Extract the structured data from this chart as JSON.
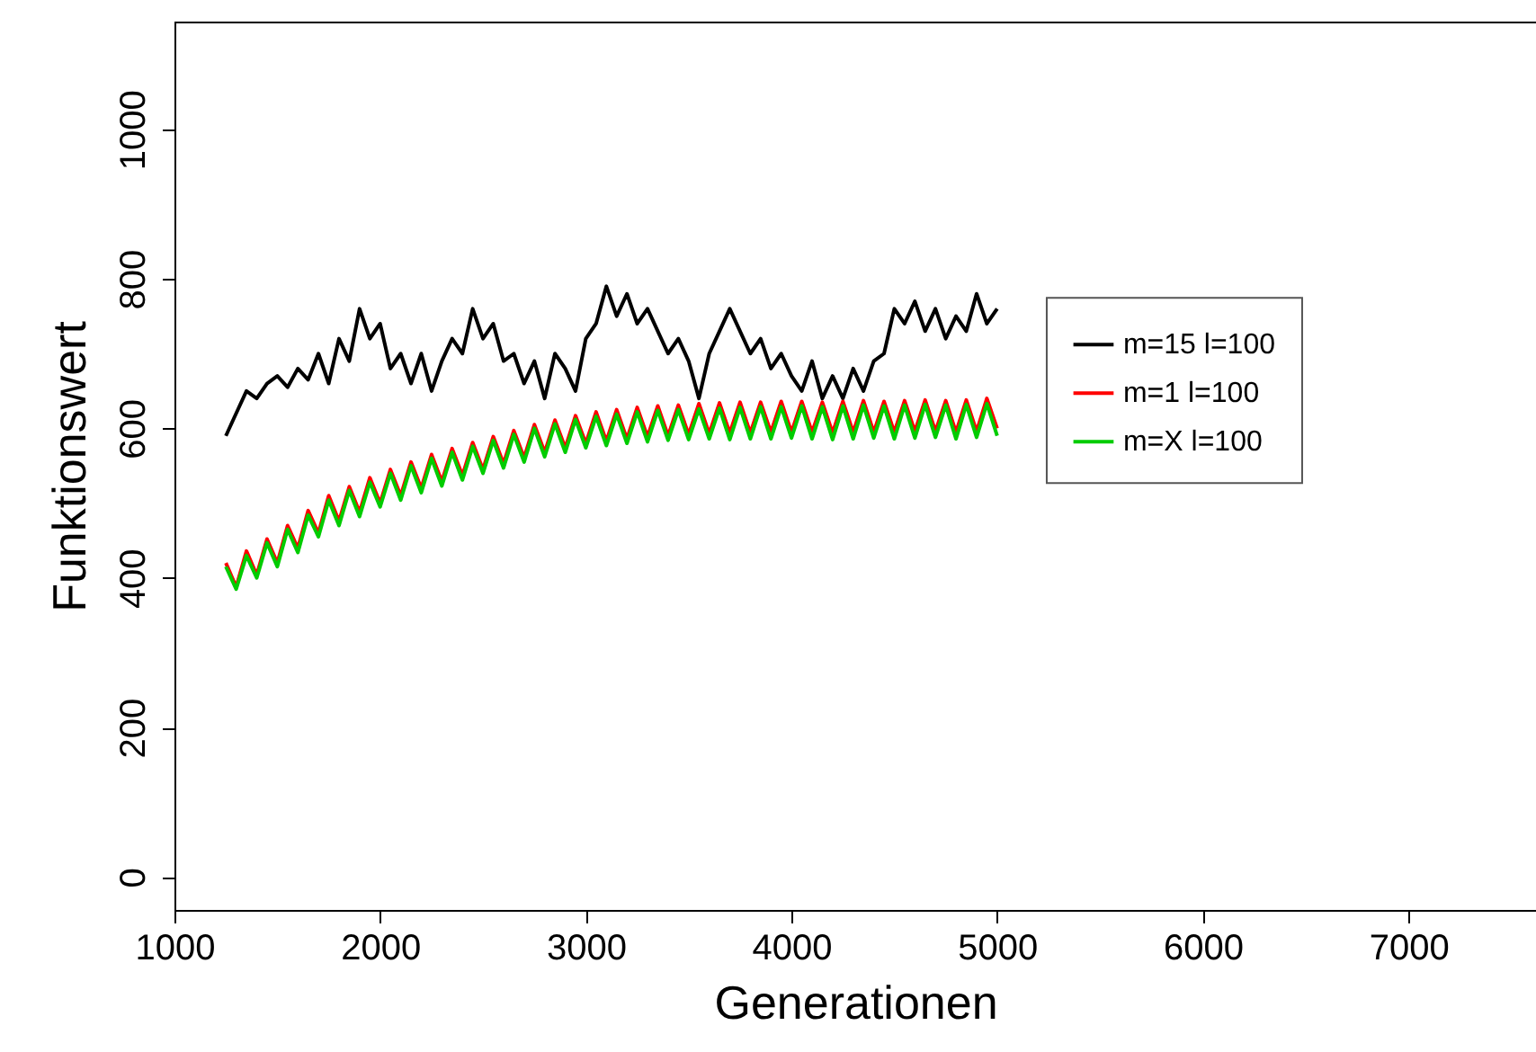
{
  "chart_data": {
    "type": "line",
    "xlabel": "Generationen",
    "ylabel": "Funktionswert",
    "xlim": [
      1000,
      7620
    ],
    "xticks": [
      1000,
      2000,
      3000,
      4000,
      5000,
      6000,
      7000
    ],
    "ylim": [
      -44,
      1144
    ],
    "yticks": [
      0,
      200,
      400,
      600,
      800,
      1000
    ],
    "grid": false,
    "legend": "right",
    "x": [
      1250,
      1300,
      1350,
      1400,
      1450,
      1500,
      1550,
      1600,
      1650,
      1700,
      1750,
      1800,
      1850,
      1900,
      1950,
      2000,
      2050,
      2100,
      2150,
      2200,
      2250,
      2300,
      2350,
      2400,
      2450,
      2500,
      2550,
      2600,
      2650,
      2700,
      2750,
      2800,
      2850,
      2900,
      2950,
      3000,
      3050,
      3100,
      3150,
      3200,
      3250,
      3300,
      3350,
      3400,
      3450,
      3500,
      3550,
      3600,
      3650,
      3700,
      3750,
      3800,
      3850,
      3900,
      3950,
      4000,
      4050,
      4100,
      4150,
      4200,
      4250,
      4300,
      4350,
      4400,
      4450,
      4500,
      4550,
      4600,
      4650,
      4700,
      4750,
      4800,
      4850,
      4900,
      4950,
      5000
    ],
    "series": [
      {
        "name": "m=15 l=100",
        "color": "#000000",
        "values": [
          590,
          620,
          650,
          640,
          660,
          670,
          655,
          680,
          665,
          700,
          660,
          720,
          690,
          760,
          720,
          740,
          680,
          700,
          660,
          700,
          650,
          690,
          720,
          700,
          760,
          720,
          740,
          690,
          700,
          660,
          690,
          640,
          700,
          680,
          650,
          720,
          740,
          790,
          750,
          780,
          740,
          760,
          730,
          700,
          720,
          690,
          640,
          700,
          730,
          760,
          730,
          700,
          720,
          680,
          700,
          670,
          650,
          690,
          640,
          670,
          640,
          680,
          650,
          690,
          700,
          760,
          740,
          770,
          730,
          760,
          720,
          750,
          730,
          780,
          740,
          760
        ]
      },
      {
        "name": "m=1 l=100",
        "color": "#ff0000",
        "values": [
          420,
          388,
          436,
          404,
          452,
          420,
          470,
          440,
          490,
          460,
          510,
          476,
          522,
          488,
          534,
          500,
          545,
          510,
          555,
          520,
          565,
          529,
          573,
          537,
          581,
          545,
          589,
          553,
          597,
          561,
          605,
          568,
          611,
          574,
          617,
          580,
          622,
          583,
          625,
          586,
          628,
          589,
          630,
          590,
          631,
          592,
          633,
          593,
          634,
          594,
          635,
          594,
          635,
          595,
          636,
          595,
          636,
          595,
          635,
          594,
          636,
          595,
          637,
          595,
          636,
          595,
          637,
          596,
          638,
          596,
          637,
          595,
          638,
          596,
          640,
          600
        ]
      },
      {
        "name": "m=X l=100",
        "color": "#00cc00",
        "values": [
          415,
          385,
          430,
          400,
          447,
          415,
          465,
          434,
          484,
          455,
          504,
          470,
          517,
          482,
          528,
          495,
          540,
          504,
          550,
          514,
          560,
          523,
          568,
          531,
          576,
          540,
          584,
          547,
          592,
          555,
          600,
          562,
          606,
          568,
          612,
          574,
          616,
          577,
          619,
          580,
          622,
          582,
          624,
          584,
          625,
          585,
          626,
          586,
          627,
          585,
          628,
          586,
          629,
          586,
          629,
          587,
          630,
          586,
          629,
          585,
          630,
          586,
          631,
          587,
          630,
          586,
          631,
          587,
          632,
          588,
          631,
          586,
          632,
          588,
          633,
          590
        ]
      }
    ]
  }
}
